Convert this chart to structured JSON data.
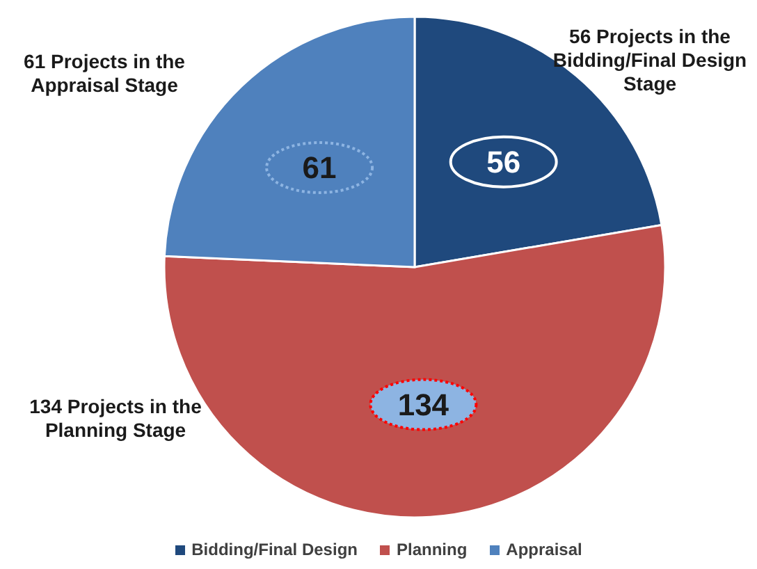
{
  "chart_data": {
    "type": "pie",
    "categories": [
      "Bidding/Final Design",
      "Planning",
      "Appraisal"
    ],
    "values": [
      56,
      134,
      61
    ],
    "colors": [
      "#1f497d",
      "#c0504d",
      "#4f81bd"
    ],
    "data_labels": true,
    "legend": "bottom",
    "annotations": [
      "56 Projects in the Bidding/Final Design Stage",
      "134 Projects in the Planning Stage",
      "61 Projects in the Appraisal Stage"
    ]
  }
}
